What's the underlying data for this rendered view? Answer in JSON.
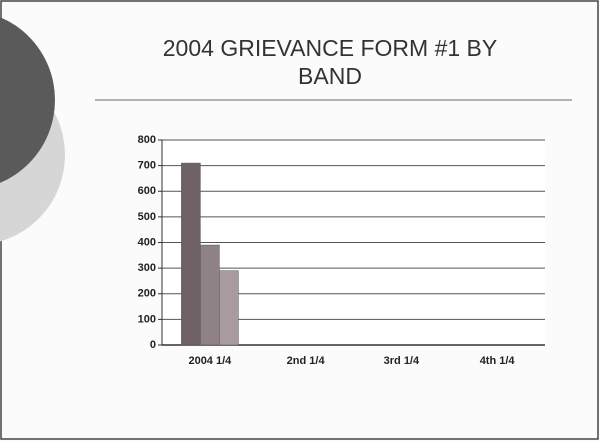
{
  "chart_data": {
    "type": "bar",
    "title": "2004 GRIEVANCE FORM #1 BY BAND",
    "categories": [
      "2004 1/4",
      "2nd 1/4",
      "3rd 1/4",
      "4th 1/4"
    ],
    "series": [
      {
        "color": "#6f6266",
        "values": [
          710,
          0,
          0,
          0
        ]
      },
      {
        "color": "#8f8286",
        "values": [
          390,
          0,
          0,
          0
        ]
      },
      {
        "color": "#a89a9e",
        "values": [
          290,
          0,
          0,
          0
        ]
      }
    ],
    "ylim": [
      0,
      800
    ],
    "yticks": [
      0,
      100,
      200,
      300,
      400,
      500,
      600,
      700,
      800
    ],
    "grid": true
  }
}
